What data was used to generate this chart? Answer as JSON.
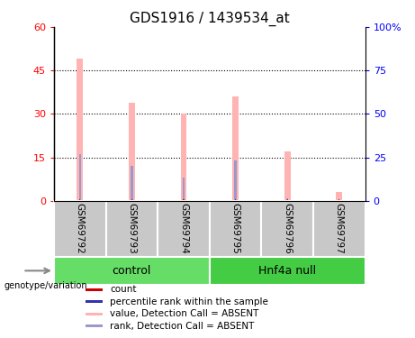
{
  "title": "GDS1916 / 1439534_at",
  "samples": [
    "GSM69792",
    "GSM69793",
    "GSM69794",
    "GSM69795",
    "GSM69796",
    "GSM69797"
  ],
  "pink_values": [
    49,
    34,
    30,
    36,
    17,
    3
  ],
  "blue_values": [
    16,
    12,
    8,
    14,
    1,
    0
  ],
  "ylim_left": [
    0,
    60
  ],
  "ylim_right": [
    0,
    100
  ],
  "yticks_left": [
    0,
    15,
    30,
    45,
    60
  ],
  "yticks_right": [
    0,
    25,
    50,
    75,
    100
  ],
  "ytick_labels_left": [
    "0",
    "15",
    "30",
    "45",
    "60"
  ],
  "ytick_labels_right": [
    "0",
    "25",
    "50",
    "75",
    "100%"
  ],
  "pink_color": "#FFB3B3",
  "blue_color": "#9999CC",
  "red_color": "#CC0000",
  "control_color": "#66DD66",
  "hnf4a_color": "#44CC44",
  "group_box_color": "#C8C8C8",
  "bg_color": "#FFFFFF",
  "title_fontsize": 11,
  "axis_fontsize": 9,
  "tick_fontsize": 8,
  "legend_fontsize": 8,
  "pink_bar_width": 0.12,
  "blue_bar_width": 0.04,
  "red_bar_width": 0.02
}
